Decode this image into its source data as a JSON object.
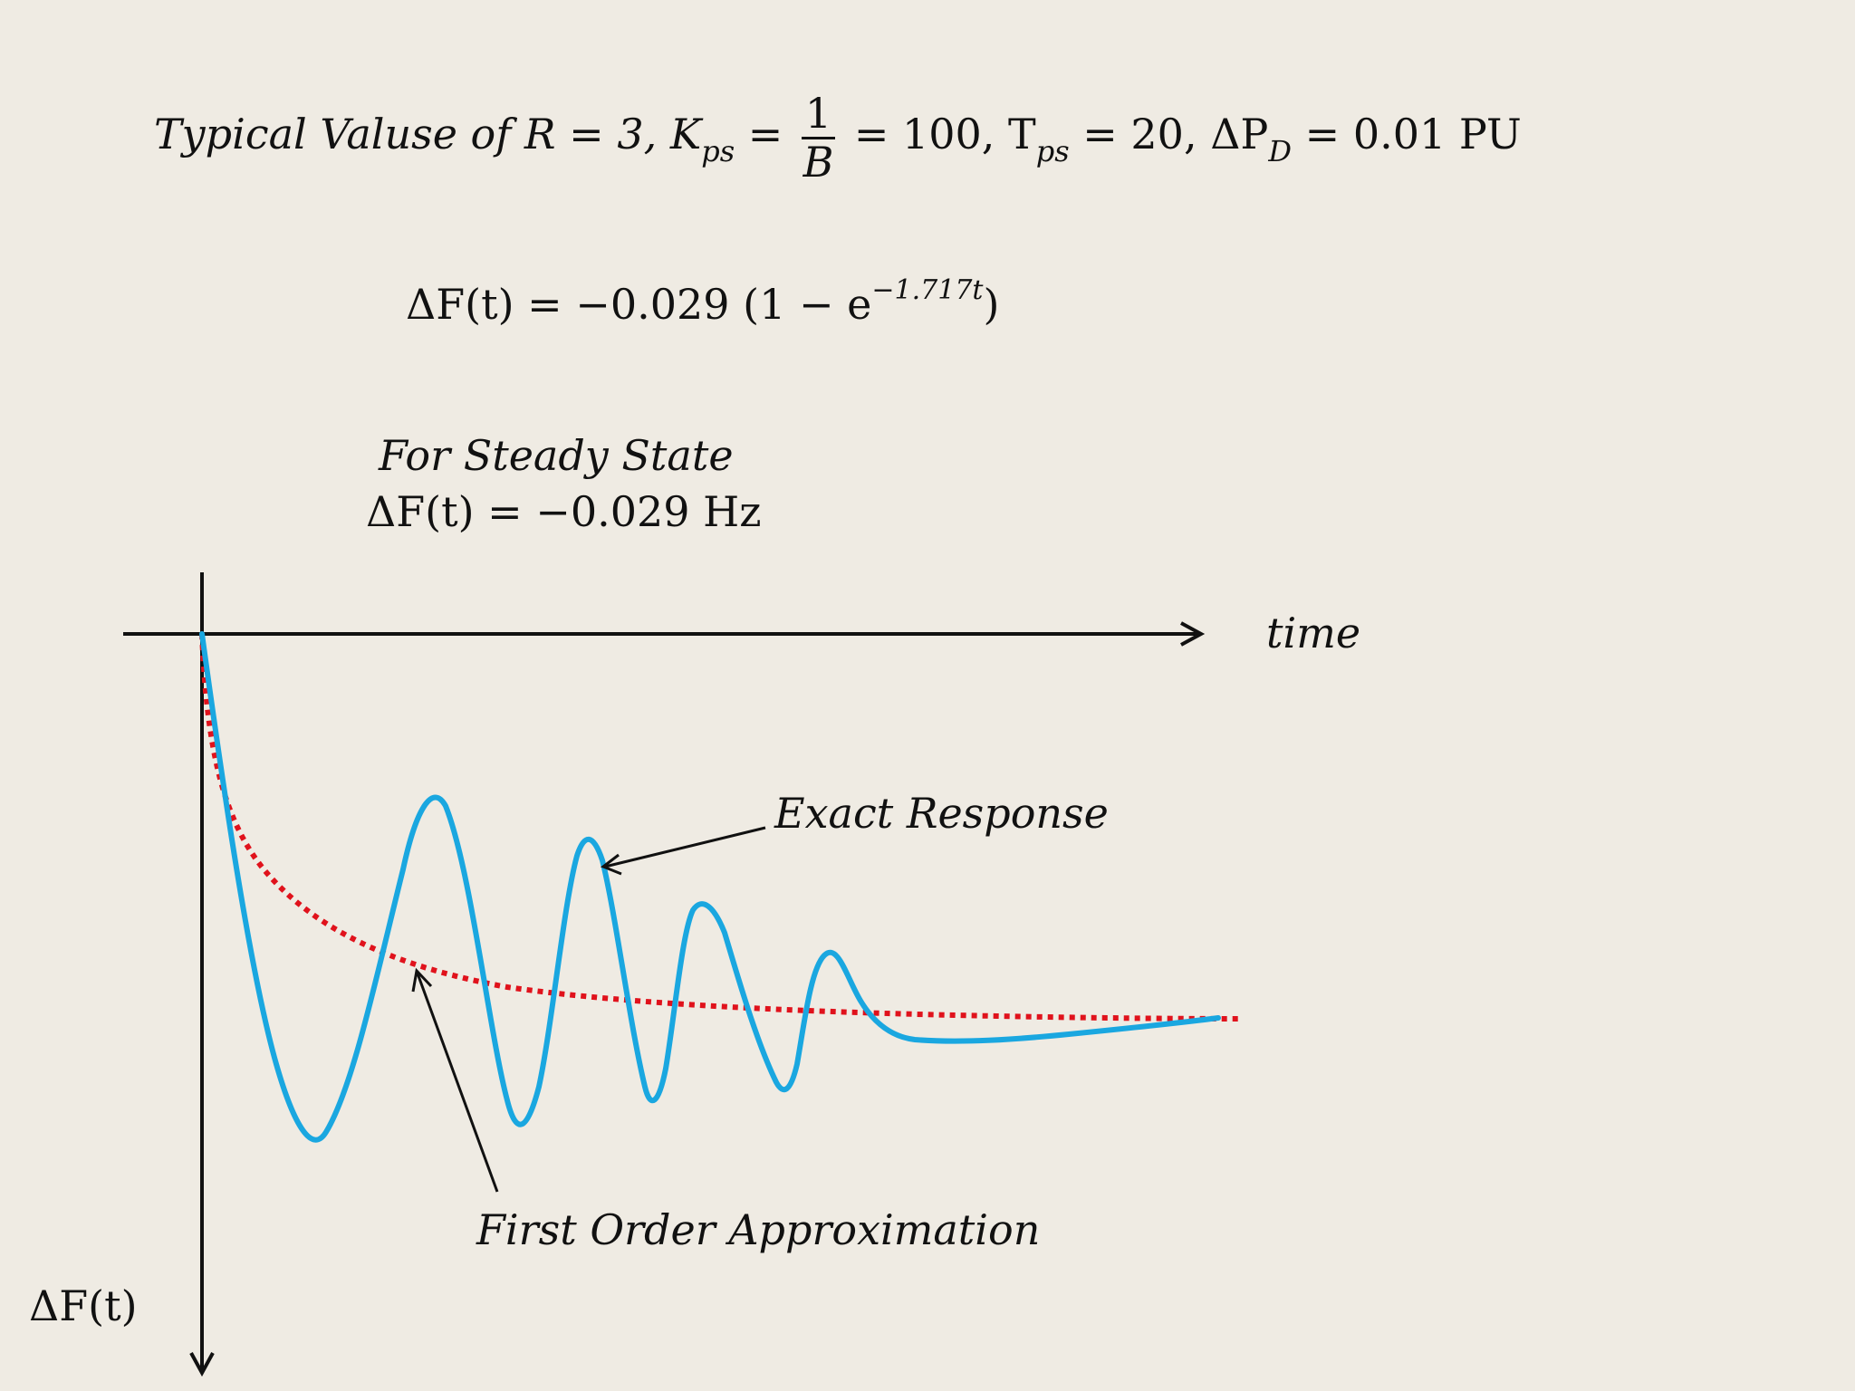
{
  "equation_typical": {
    "prefix": "Typical Valuse of",
    "r_part": "R = 3, K",
    "kps_sub": "ps",
    "eq_sign": "=",
    "frac_num": "1",
    "frac_den": "B",
    "mid": "= 100, T",
    "tps_sub": "ps",
    "tail_a": "= 20, ΔP",
    "pd_sub": "D",
    "tail_b": "= 0.01 PU"
  },
  "equation_response": {
    "lhs": "ΔF(t) = −0.029 (1 − e",
    "exponent": "−1.717t",
    "close": ")"
  },
  "steady_state": {
    "label": "For Steady State",
    "equation": "ΔF(t) = −0.029 Hz"
  },
  "diagram": {
    "x_axis_label": "time",
    "y_axis_label": "ΔF(t)",
    "exact_label": "Exact Response",
    "approx_label": "First Order Approximation",
    "colors": {
      "exact": "#1aa7e0",
      "approx": "#e0121c",
      "axis": "#111111",
      "background": "#efebe3"
    }
  }
}
